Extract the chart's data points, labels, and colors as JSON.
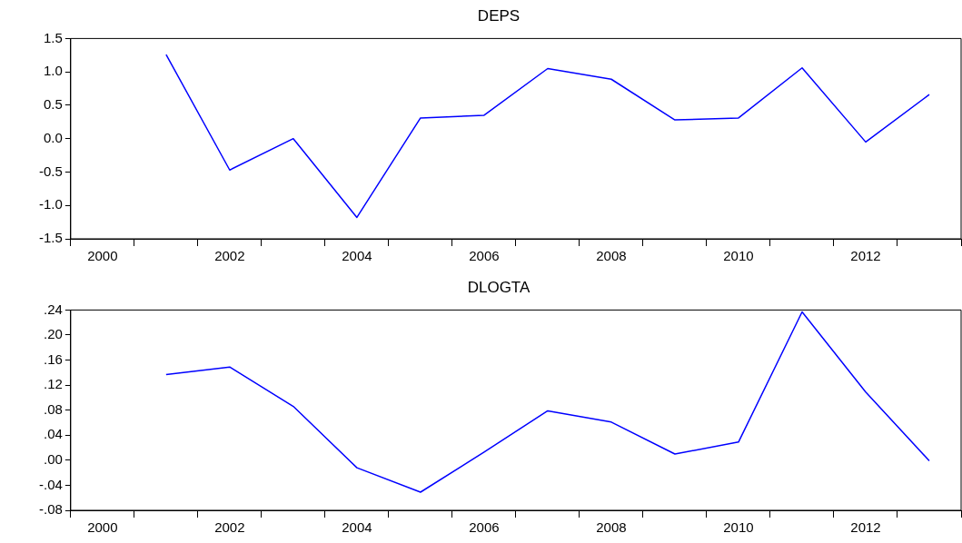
{
  "chart_data": [
    {
      "type": "line",
      "title": "DEPS",
      "categories": [
        "2000",
        null,
        "2002",
        null,
        "2004",
        null,
        "2006",
        null,
        "2008",
        null,
        "2010",
        null,
        "2012",
        null
      ],
      "series": [
        {
          "color": "#0000ff",
          "values": [
            null,
            1.26,
            -0.47,
            0.0,
            -1.18,
            0.31,
            0.35,
            1.05,
            0.89,
            0.28,
            0.31,
            1.06,
            -0.05,
            0.66
          ]
        }
      ],
      "ylim": [
        -1.5,
        1.5
      ],
      "yticks": [
        -1.5,
        {
          "value": -1,
          "label": "-1.0"
        },
        -0.5,
        {
          "value": 0,
          "label": "0.0"
        },
        0.5,
        {
          "value": 1,
          "label": "1.0"
        },
        1.5
      ]
    },
    {
      "type": "line",
      "title": "DLOGTA",
      "categories": [
        "2000",
        null,
        "2002",
        null,
        "2004",
        null,
        "2006",
        null,
        "2008",
        null,
        "2010",
        null,
        "2012",
        null
      ],
      "series": [
        {
          "color": "#0000ff",
          "values": [
            null,
            0.137,
            0.149,
            0.086,
            -0.012,
            -0.051,
            0.013,
            0.079,
            0.061,
            0.01,
            0.029,
            0.237,
            0.109,
            -0.001
          ]
        }
      ],
      "ylim": [
        -0.08,
        0.24
      ],
      "yticks": [
        {
          "value": -0.08,
          "label": "-.08"
        },
        {
          "value": -0.04,
          "label": "-.04"
        },
        {
          "value": 0,
          "label": ".00"
        },
        {
          "value": 0.04,
          "label": ".04"
        },
        {
          "value": 0.08,
          "label": ".08"
        },
        {
          "value": 0.12,
          "label": ".12"
        },
        {
          "value": 0.16,
          "label": ".16"
        },
        {
          "value": 0.2,
          "label": ".20"
        },
        {
          "value": 0.24,
          "label": ".24"
        }
      ]
    }
  ]
}
